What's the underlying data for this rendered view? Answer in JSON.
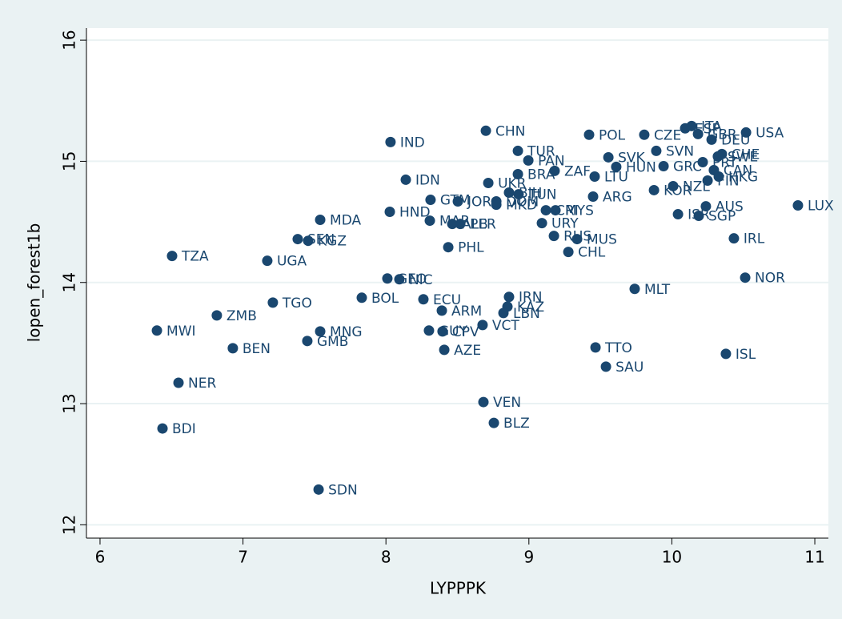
{
  "chart_data": {
    "type": "scatter",
    "x_label": "LYPPPK",
    "y_label": "lopen_forest1b",
    "color": "#1a476f",
    "grid": true,
    "xlim": [
      5.905,
      11.095
    ],
    "ylim": [
      11.89,
      16.1
    ],
    "xticks": [
      6,
      7,
      8,
      9,
      10,
      11
    ],
    "yticks": [
      12,
      13,
      14,
      15,
      16
    ],
    "labels": [
      "TZA",
      "MWI",
      "NER",
      "BDI",
      "ZMB",
      "BEN",
      "TGO",
      "UGA",
      "SEN",
      "KGZ",
      "MDA",
      "MNG",
      "GMB",
      "SDN",
      "BOL",
      "GEO",
      "NIC",
      "HND",
      "IND",
      "IDN",
      "ECU",
      "ARM",
      "GUY",
      "CPV",
      "AZE",
      "MAR",
      "ALB",
      "PER",
      "GTM",
      "JOR",
      "PHL",
      "CHN",
      "UKR",
      "MKD",
      "DOM",
      "TUR",
      "BRA",
      "PAN",
      "BIH",
      "TUN",
      "VEN",
      "BLZ",
      "VCT",
      "IRN",
      "KAZ",
      "LBN",
      "URY",
      "CRI",
      "RUS",
      "MUS",
      "CHL",
      "ARG",
      "POL",
      "CZE",
      "SVK",
      "SVN",
      "GRC",
      "HUN",
      "LTU",
      "MYS",
      "ZAF",
      "KOR",
      "NZL",
      "ISR",
      "SGP",
      "AUS",
      "LUX",
      "IRL",
      "NOR",
      "MLT",
      "TTO",
      "SAU",
      "ISL",
      "FIN",
      "HKG",
      "USA",
      "ITA",
      "ESP",
      "GBR",
      "DEU",
      "CHE",
      "SWE",
      "CAN",
      "PRT"
    ],
    "x": [
      6.504,
      6.398,
      6.549,
      6.437,
      6.817,
      6.929,
      7.209,
      7.17,
      7.383,
      7.456,
      7.54,
      7.54,
      7.45,
      7.529,
      7.831,
      8.01,
      8.094,
      8.027,
      8.032,
      8.139,
      8.262,
      8.391,
      8.301,
      8.396,
      8.408,
      8.307,
      8.464,
      8.52,
      8.312,
      8.503,
      8.436,
      8.699,
      8.716,
      8.772,
      8.772,
      8.923,
      8.923,
      8.996,
      8.861,
      8.928,
      8.682,
      8.755,
      8.676,
      8.861,
      8.85,
      8.822,
      9.091,
      9.119,
      9.175,
      9.337,
      9.276,
      9.449,
      9.421,
      9.807,
      9.556,
      9.891,
      9.942,
      9.611,
      9.46,
      9.186,
      9.18,
      9.875,
      10.009,
      10.043,
      10.188,
      10.238,
      10.882,
      10.434,
      10.513,
      9.74,
      9.466,
      9.539,
      10.378,
      10.25,
      10.328,
      10.519,
      10.138,
      10.093,
      10.183,
      10.278,
      10.35,
      10.322,
      10.294,
      10.216
    ],
    "values": [
      14.219,
      13.603,
      13.172,
      12.795,
      13.728,
      13.457,
      13.834,
      14.179,
      14.358,
      14.344,
      14.517,
      13.596,
      13.517,
      12.291,
      13.874,
      14.033,
      14.026,
      14.583,
      15.159,
      14.848,
      13.861,
      13.768,
      13.603,
      13.596,
      13.444,
      14.51,
      14.483,
      14.483,
      14.682,
      14.669,
      14.291,
      15.252,
      14.821,
      14.642,
      14.669,
      15.086,
      14.894,
      15.007,
      14.742,
      14.728,
      13.013,
      12.841,
      13.649,
      13.881,
      13.801,
      13.748,
      14.49,
      14.596,
      14.384,
      14.358,
      14.252,
      14.709,
      15.219,
      15.219,
      15.033,
      15.086,
      14.96,
      14.954,
      14.874,
      14.596,
      14.921,
      14.762,
      14.795,
      14.563,
      14.55,
      14.629,
      14.636,
      14.364,
      14.04,
      13.947,
      13.464,
      13.305,
      13.411,
      14.841,
      14.874,
      15.238,
      15.291,
      15.272,
      15.225,
      15.179,
      15.06,
      15.04,
      14.927,
      14.993
    ]
  }
}
